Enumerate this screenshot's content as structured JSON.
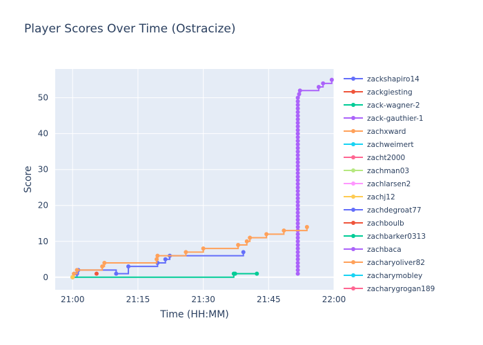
{
  "chart_data": {
    "type": "line",
    "title": "Player Scores Over Time (Ostracize)",
    "xlabel": "Time (HH:MM)",
    "ylabel": "Score",
    "x_unit": "minutes after 21:00",
    "xlim": [
      -4,
      60
    ],
    "ylim": [
      -3.5,
      58
    ],
    "x_ticks": [
      {
        "value": 0,
        "label": "21:00"
      },
      {
        "value": 15,
        "label": "21:15"
      },
      {
        "value": 30,
        "label": "21:30"
      },
      {
        "value": 45,
        "label": "21:45"
      },
      {
        "value": 60,
        "label": "22:00"
      }
    ],
    "y_ticks": [
      {
        "value": 0,
        "label": "0"
      },
      {
        "value": 10,
        "label": "10"
      },
      {
        "value": 20,
        "label": "20"
      },
      {
        "value": 30,
        "label": "30"
      },
      {
        "value": 40,
        "label": "40"
      },
      {
        "value": 50,
        "label": "50"
      }
    ],
    "grid": true,
    "legend_position": "right",
    "series": [
      {
        "name": "zackshapiro14",
        "color": "#636efa",
        "step": true,
        "points": [
          [
            0,
            0
          ],
          [
            1,
            1
          ],
          [
            1.3,
            2
          ],
          [
            10,
            1
          ],
          [
            12.8,
            3
          ],
          [
            19.5,
            4
          ],
          [
            21.3,
            5
          ],
          [
            22.3,
            6
          ],
          [
            39.2,
            7
          ]
        ]
      },
      {
        "name": "zackgiesting",
        "color": "#EF553B",
        "step": true,
        "points": [
          [
            5.5,
            1
          ]
        ]
      },
      {
        "name": "zack-wagner-2",
        "color": "#00cc96",
        "step": true,
        "points": [
          [
            0,
            0
          ],
          [
            37,
            1
          ],
          [
            37.3,
            1
          ],
          [
            42.3,
            1
          ]
        ]
      },
      {
        "name": "zack-gauthier-1",
        "color": "#ab63fa",
        "step": true,
        "points": [
          [
            51.7,
            1
          ],
          [
            51.7,
            2
          ],
          [
            51.7,
            3
          ],
          [
            51.7,
            4
          ],
          [
            51.7,
            5
          ],
          [
            51.7,
            6
          ],
          [
            51.7,
            7
          ],
          [
            51.7,
            8
          ],
          [
            51.7,
            9
          ],
          [
            51.7,
            10
          ],
          [
            51.7,
            11
          ],
          [
            51.7,
            12
          ],
          [
            51.7,
            13
          ],
          [
            51.7,
            14
          ],
          [
            51.7,
            15
          ],
          [
            51.7,
            16
          ],
          [
            51.7,
            17
          ],
          [
            51.7,
            18
          ],
          [
            51.7,
            19
          ],
          [
            51.7,
            20
          ],
          [
            51.7,
            21
          ],
          [
            51.7,
            22
          ],
          [
            51.7,
            23
          ],
          [
            51.7,
            24
          ],
          [
            51.7,
            25
          ],
          [
            51.7,
            26
          ],
          [
            51.7,
            27
          ],
          [
            51.7,
            28
          ],
          [
            51.7,
            29
          ],
          [
            51.7,
            30
          ],
          [
            51.7,
            31
          ],
          [
            51.7,
            32
          ],
          [
            51.7,
            33
          ],
          [
            51.7,
            34
          ],
          [
            51.7,
            35
          ],
          [
            51.7,
            36
          ],
          [
            51.7,
            37
          ],
          [
            51.7,
            38
          ],
          [
            51.7,
            39
          ],
          [
            51.7,
            40
          ],
          [
            51.7,
            41
          ],
          [
            51.7,
            42
          ],
          [
            51.7,
            43
          ],
          [
            51.7,
            44
          ],
          [
            51.7,
            45
          ],
          [
            51.7,
            46
          ],
          [
            51.7,
            47
          ],
          [
            51.7,
            48
          ],
          [
            51.7,
            49
          ],
          [
            51.7,
            50
          ],
          [
            52,
            51
          ],
          [
            52.2,
            52
          ],
          [
            56.5,
            53
          ],
          [
            57.5,
            54
          ],
          [
            59.5,
            55
          ]
        ]
      },
      {
        "name": "zachxward",
        "color": "#FFA15A",
        "step": true,
        "points": [
          [
            0,
            0
          ],
          [
            0.3,
            1
          ],
          [
            1,
            2
          ],
          [
            6.8,
            3
          ],
          [
            7.3,
            4
          ],
          [
            19.3,
            5
          ],
          [
            19.5,
            6
          ],
          [
            26,
            7
          ],
          [
            30,
            8
          ],
          [
            38,
            9
          ],
          [
            40,
            10
          ],
          [
            40.7,
            11
          ],
          [
            44.5,
            12
          ],
          [
            48.5,
            13
          ],
          [
            53.8,
            14
          ]
        ]
      },
      {
        "name": "zachweimert",
        "color": "#19d3f3",
        "step": true,
        "points": []
      },
      {
        "name": "zacht2000",
        "color": "#FF6692",
        "step": true,
        "points": []
      },
      {
        "name": "zachman03",
        "color": "#B6E880",
        "step": true,
        "points": []
      },
      {
        "name": "zachlarsen2",
        "color": "#FF97FF",
        "step": true,
        "points": []
      },
      {
        "name": "zachj12",
        "color": "#FECB52",
        "step": true,
        "points": [
          [
            0,
            0
          ]
        ]
      },
      {
        "name": "zachdegroat77",
        "color": "#636efa",
        "step": true,
        "points": []
      },
      {
        "name": "zachboulb",
        "color": "#EF553B",
        "step": true,
        "points": []
      },
      {
        "name": "zachbarker0313",
        "color": "#00cc96",
        "step": true,
        "points": []
      },
      {
        "name": "zachbaca",
        "color": "#ab63fa",
        "step": true,
        "points": []
      },
      {
        "name": "zacharyoliver82",
        "color": "#FFA15A",
        "step": true,
        "points": []
      },
      {
        "name": "zacharymobley",
        "color": "#19d3f3",
        "step": true,
        "points": []
      },
      {
        "name": "zacharygrogan189",
        "color": "#FF6692",
        "step": true,
        "points": []
      }
    ]
  }
}
